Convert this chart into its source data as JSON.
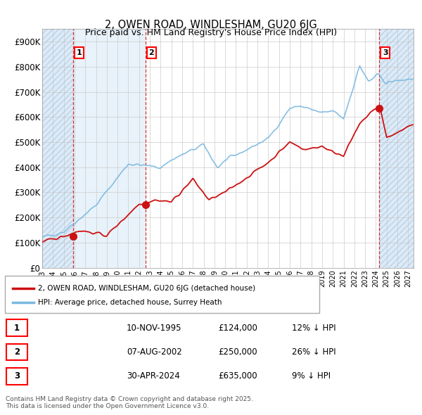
{
  "title": "2, OWEN ROAD, WINDLESHAM, GU20 6JG",
  "subtitle": "Price paid vs. HM Land Registry's House Price Index (HPI)",
  "ylim": [
    0,
    950000
  ],
  "xlim_start": 1993.0,
  "xlim_end": 2027.5,
  "yticks": [
    0,
    100000,
    200000,
    300000,
    400000,
    500000,
    600000,
    700000,
    800000,
    900000
  ],
  "ytick_labels": [
    "£0",
    "£100K",
    "£200K",
    "£300K",
    "£400K",
    "£500K",
    "£600K",
    "£700K",
    "£800K",
    "£900K"
  ],
  "sale_dates": [
    1995.86,
    2002.6,
    2024.33
  ],
  "sale_prices": [
    124000,
    250000,
    635000
  ],
  "sale_labels": [
    "1",
    "2",
    "3"
  ],
  "hpi_color": "#7ab8e0",
  "price_color": "#cc1111",
  "vline_color": "#cc1111",
  "hatch_fill_color": "#ddeaf7",
  "between_fill_color": "#e8f2fa",
  "legend_label_price": "2, OWEN ROAD, WINDLESHAM, GU20 6JG (detached house)",
  "legend_label_hpi": "HPI: Average price, detached house, Surrey Heath",
  "table_entries": [
    {
      "num": "1",
      "date": "10-NOV-1995",
      "price": "£124,000",
      "note": "12% ↓ HPI"
    },
    {
      "num": "2",
      "date": "07-AUG-2002",
      "price": "£250,000",
      "note": "26% ↓ HPI"
    },
    {
      "num": "3",
      "date": "30-APR-2024",
      "price": "£635,000",
      "note": "9% ↓ HPI"
    }
  ],
  "footnote": "Contains HM Land Registry data © Crown copyright and database right 2025.\nThis data is licensed under the Open Government Licence v3.0."
}
